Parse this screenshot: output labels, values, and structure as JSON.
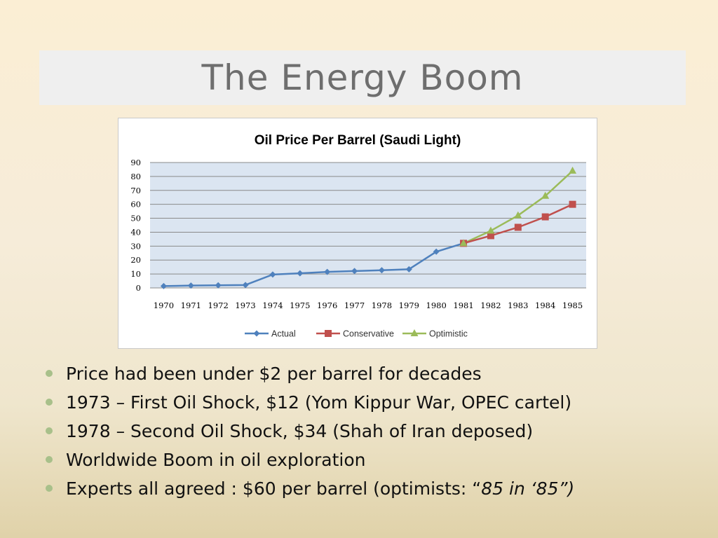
{
  "slide": {
    "title": "The Energy Boom"
  },
  "bullets": [
    {
      "text": "Price had been under $2 per barrel for decades"
    },
    {
      "text": "1973 – First Oil Shock, $12  (Yom Kippur War, OPEC cartel)"
    },
    {
      "text": "1978 – Second Oil Shock, $34 (Shah of Iran deposed)"
    },
    {
      "text": "Worldwide Boom in oil exploration"
    },
    {
      "text": "Experts all agreed : $60 per barrel (optimists: “",
      "emphasis": "85 in ‘85”)"
    }
  ],
  "colors": {
    "actual": "#4f81bd",
    "conservative": "#c0504d",
    "optimistic": "#9bbb59",
    "plot_bg": "#dbe5f1",
    "bullet": "#a8c08a"
  },
  "chart_data": {
    "type": "line",
    "title": "Oil Price Per Barrel (Saudi Light)",
    "xlabel": "",
    "ylabel": "",
    "categories": [
      "1970",
      "1971",
      "1972",
      "1973",
      "1974",
      "1975",
      "1976",
      "1977",
      "1978",
      "1979",
      "1980",
      "1981",
      "1982",
      "1983",
      "1984",
      "1985"
    ],
    "ylim": [
      0,
      90
    ],
    "yticks": [
      0,
      10,
      20,
      30,
      40,
      50,
      60,
      70,
      80,
      90
    ],
    "grid": true,
    "legend": "bottom",
    "series": [
      {
        "name": "Actual",
        "marker": "diamond",
        "values": [
          1.3,
          1.7,
          1.9,
          2.1,
          9.6,
          10.5,
          11.5,
          12.1,
          12.7,
          13.4,
          26,
          32,
          null,
          null,
          null,
          null
        ]
      },
      {
        "name": "Conservative",
        "marker": "square",
        "values": [
          null,
          null,
          null,
          null,
          null,
          null,
          null,
          null,
          null,
          null,
          null,
          32,
          37.5,
          43.5,
          51,
          60
        ]
      },
      {
        "name": "Optimistic",
        "marker": "triangle",
        "values": [
          null,
          null,
          null,
          null,
          null,
          null,
          null,
          null,
          null,
          null,
          null,
          32,
          41,
          52,
          66,
          84
        ]
      }
    ]
  }
}
